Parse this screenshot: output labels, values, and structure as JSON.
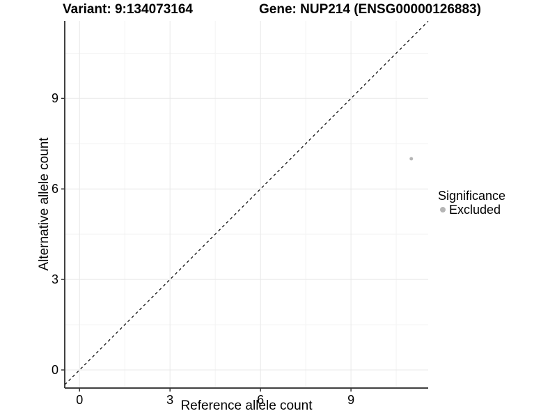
{
  "titles": {
    "variant": "Variant: 9:134073164",
    "gene": "Gene: NUP214 (ENSG00000126883)"
  },
  "chart_data": {
    "type": "scatter",
    "xlabel": "Reference allele count",
    "ylabel": "Alternative allele count",
    "xlim": [
      -0.49,
      11.56
    ],
    "ylim": [
      -0.6,
      11.57
    ],
    "x_ticks": [
      0,
      3,
      6,
      9
    ],
    "y_ticks": [
      0,
      3,
      6,
      9
    ],
    "x_minor_ticks": [
      1.5,
      4.5,
      7.5,
      10.5
    ],
    "y_minor_ticks": [
      1.5,
      4.5,
      7.5,
      10.5
    ],
    "grid": "major and minor, light gray on white",
    "points": [
      {
        "x": 11,
        "y": 7,
        "series": "Excluded"
      }
    ],
    "reference_line": {
      "slope": 1,
      "intercept": 0,
      "style": "dashed",
      "color": "#000000"
    },
    "colors": {
      "excluded_point": "#b5b5b5",
      "grid_major": "#e8e8e8",
      "grid_minor": "#f3f3f3",
      "axis_line": "#404040",
      "tick_mark": "#333333"
    },
    "legend_position": "right"
  },
  "legend": {
    "title": "Significance",
    "items": [
      {
        "label": "Excluded",
        "color": "#b5b5b5"
      }
    ]
  }
}
